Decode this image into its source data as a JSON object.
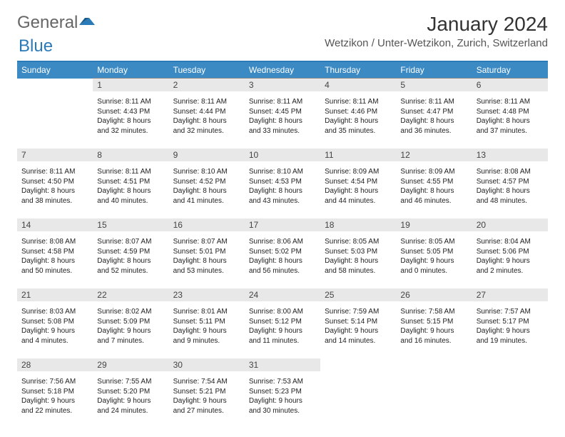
{
  "logo": {
    "text1": "General",
    "text2": "Blue"
  },
  "title": "January 2024",
  "location": "Wetzikon / Unter-Wetzikon, Zurich, Switzerland",
  "colors": {
    "header_bg": "#3b8ac4",
    "header_text": "#ffffff",
    "divider": "#2a7ab8",
    "daynum_bg": "#e8e8e8",
    "daynum_border": "#888888",
    "text": "#222222",
    "logo_gray": "#666666",
    "logo_blue": "#2a7ab8"
  },
  "weekdays": [
    "Sunday",
    "Monday",
    "Tuesday",
    "Wednesday",
    "Thursday",
    "Friday",
    "Saturday"
  ],
  "weeks": [
    [
      null,
      {
        "n": "1",
        "sr": "8:11 AM",
        "ss": "4:43 PM",
        "dl": "8 hours and 32 minutes."
      },
      {
        "n": "2",
        "sr": "8:11 AM",
        "ss": "4:44 PM",
        "dl": "8 hours and 32 minutes."
      },
      {
        "n": "3",
        "sr": "8:11 AM",
        "ss": "4:45 PM",
        "dl": "8 hours and 33 minutes."
      },
      {
        "n": "4",
        "sr": "8:11 AM",
        "ss": "4:46 PM",
        "dl": "8 hours and 35 minutes."
      },
      {
        "n": "5",
        "sr": "8:11 AM",
        "ss": "4:47 PM",
        "dl": "8 hours and 36 minutes."
      },
      {
        "n": "6",
        "sr": "8:11 AM",
        "ss": "4:48 PM",
        "dl": "8 hours and 37 minutes."
      }
    ],
    [
      {
        "n": "7",
        "sr": "8:11 AM",
        "ss": "4:50 PM",
        "dl": "8 hours and 38 minutes."
      },
      {
        "n": "8",
        "sr": "8:11 AM",
        "ss": "4:51 PM",
        "dl": "8 hours and 40 minutes."
      },
      {
        "n": "9",
        "sr": "8:10 AM",
        "ss": "4:52 PM",
        "dl": "8 hours and 41 minutes."
      },
      {
        "n": "10",
        "sr": "8:10 AM",
        "ss": "4:53 PM",
        "dl": "8 hours and 43 minutes."
      },
      {
        "n": "11",
        "sr": "8:09 AM",
        "ss": "4:54 PM",
        "dl": "8 hours and 44 minutes."
      },
      {
        "n": "12",
        "sr": "8:09 AM",
        "ss": "4:55 PM",
        "dl": "8 hours and 46 minutes."
      },
      {
        "n": "13",
        "sr": "8:08 AM",
        "ss": "4:57 PM",
        "dl": "8 hours and 48 minutes."
      }
    ],
    [
      {
        "n": "14",
        "sr": "8:08 AM",
        "ss": "4:58 PM",
        "dl": "8 hours and 50 minutes."
      },
      {
        "n": "15",
        "sr": "8:07 AM",
        "ss": "4:59 PM",
        "dl": "8 hours and 52 minutes."
      },
      {
        "n": "16",
        "sr": "8:07 AM",
        "ss": "5:01 PM",
        "dl": "8 hours and 53 minutes."
      },
      {
        "n": "17",
        "sr": "8:06 AM",
        "ss": "5:02 PM",
        "dl": "8 hours and 56 minutes."
      },
      {
        "n": "18",
        "sr": "8:05 AM",
        "ss": "5:03 PM",
        "dl": "8 hours and 58 minutes."
      },
      {
        "n": "19",
        "sr": "8:05 AM",
        "ss": "5:05 PM",
        "dl": "9 hours and 0 minutes."
      },
      {
        "n": "20",
        "sr": "8:04 AM",
        "ss": "5:06 PM",
        "dl": "9 hours and 2 minutes."
      }
    ],
    [
      {
        "n": "21",
        "sr": "8:03 AM",
        "ss": "5:08 PM",
        "dl": "9 hours and 4 minutes."
      },
      {
        "n": "22",
        "sr": "8:02 AM",
        "ss": "5:09 PM",
        "dl": "9 hours and 7 minutes."
      },
      {
        "n": "23",
        "sr": "8:01 AM",
        "ss": "5:11 PM",
        "dl": "9 hours and 9 minutes."
      },
      {
        "n": "24",
        "sr": "8:00 AM",
        "ss": "5:12 PM",
        "dl": "9 hours and 11 minutes."
      },
      {
        "n": "25",
        "sr": "7:59 AM",
        "ss": "5:14 PM",
        "dl": "9 hours and 14 minutes."
      },
      {
        "n": "26",
        "sr": "7:58 AM",
        "ss": "5:15 PM",
        "dl": "9 hours and 16 minutes."
      },
      {
        "n": "27",
        "sr": "7:57 AM",
        "ss": "5:17 PM",
        "dl": "9 hours and 19 minutes."
      }
    ],
    [
      {
        "n": "28",
        "sr": "7:56 AM",
        "ss": "5:18 PM",
        "dl": "9 hours and 22 minutes."
      },
      {
        "n": "29",
        "sr": "7:55 AM",
        "ss": "5:20 PM",
        "dl": "9 hours and 24 minutes."
      },
      {
        "n": "30",
        "sr": "7:54 AM",
        "ss": "5:21 PM",
        "dl": "9 hours and 27 minutes."
      },
      {
        "n": "31",
        "sr": "7:53 AM",
        "ss": "5:23 PM",
        "dl": "9 hours and 30 minutes."
      },
      null,
      null,
      null
    ]
  ],
  "labels": {
    "sunrise": "Sunrise:",
    "sunset": "Sunset:",
    "daylight": "Daylight:"
  }
}
